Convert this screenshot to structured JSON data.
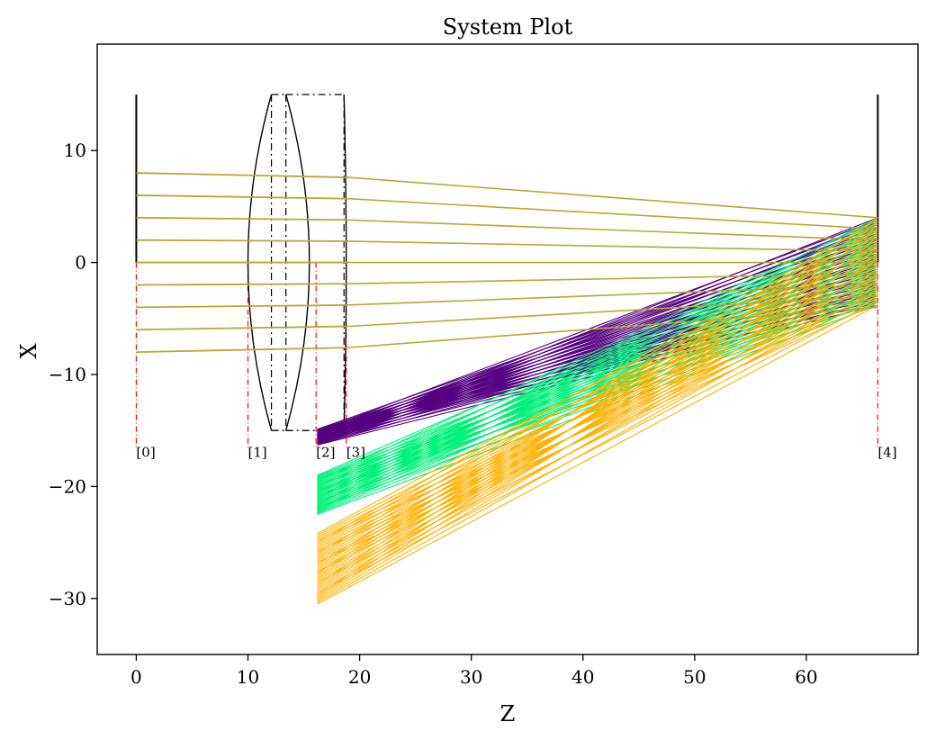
{
  "chart_data": {
    "type": "line",
    "title": "System Plot",
    "xlabel": "Z",
    "ylabel": "X",
    "xlim": [
      -3.5,
      70.0
    ],
    "ylim": [
      -35.0,
      19.5
    ],
    "xticks": [
      0,
      10,
      20,
      30,
      40,
      50,
      60
    ],
    "yticks": [
      10,
      0,
      -10,
      -20,
      -30
    ],
    "xtick_labels": [
      "0",
      "10",
      "20",
      "30",
      "40",
      "50",
      "60"
    ],
    "ytick_labels": [
      "10",
      "0",
      "−10",
      "−20",
      "−30"
    ],
    "grid": false,
    "colors": {
      "axis_ray": "#b8a830",
      "field_1": "#55007f",
      "field_2": "#00f07a",
      "field_3": "#ffb000",
      "optics": "#000000",
      "marker": "#ff0000"
    },
    "surfaces": [
      {
        "label": "[0]",
        "z": 0
      },
      {
        "label": "[1]",
        "z": 10
      },
      {
        "label": "[2]",
        "z": 16.1
      },
      {
        "label": "[3]",
        "z": 18.8
      },
      {
        "label": "[4]",
        "z": 66.4
      }
    ],
    "lens_semi_aperture": 15,
    "axis_bundle": {
      "heights": [
        8,
        6,
        4,
        2,
        0,
        -2,
        -4,
        -6,
        -8
      ],
      "image_heights": [
        4,
        3,
        2,
        1,
        0,
        -1,
        -2,
        -3,
        -4
      ],
      "z_start": 0,
      "z_image": 66.4
    },
    "off_axis_bundles": [
      {
        "name": "field_1",
        "start_z": 16.2,
        "start_range": [
          -16.3,
          -14.9
        ],
        "image_range": [
          -3.8,
          4.0
        ]
      },
      {
        "name": "field_2",
        "start_z": 16.2,
        "start_range": [
          -22.5,
          -19.0
        ],
        "image_range": [
          -3.8,
          4.0
        ]
      },
      {
        "name": "field_3",
        "start_z": 16.2,
        "start_range": [
          -30.5,
          -24.2
        ],
        "image_range": [
          -3.8,
          4.0
        ]
      }
    ]
  }
}
